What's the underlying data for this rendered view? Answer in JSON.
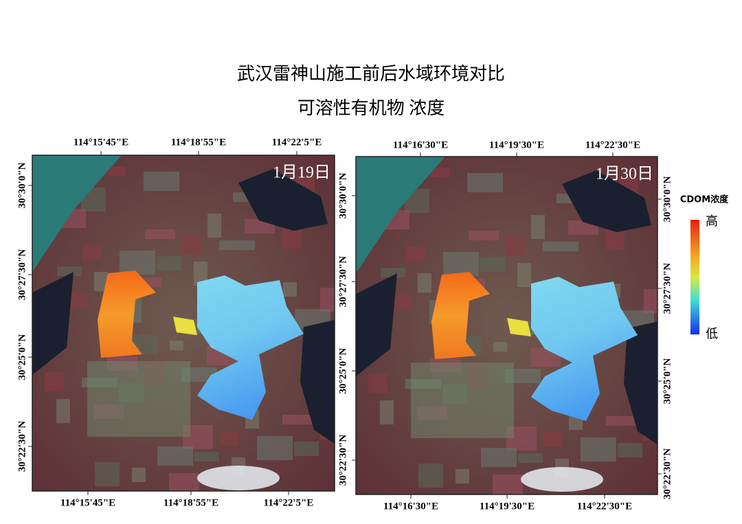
{
  "title": "武汉雷神山施工前后水域环境对比",
  "subtitle": "可溶性有机物 浓度",
  "maps": [
    {
      "date": "1月19日",
      "top_ticks": [
        "114°15'45\"E",
        "114°18'55\"E",
        "114°22'5\"E"
      ],
      "bottom_ticks": [
        "114°15'45\"E",
        "114°18'55\"E",
        "114°22'5\"E"
      ],
      "left_ticks": [
        "30°30'0\"N",
        "30°27'30\"N",
        "30°25'0\"N",
        "30°22'30\"N"
      ]
    },
    {
      "date": "1月30日",
      "top_ticks": [
        "114°16'30\"E",
        "114°19'30\"E",
        "114°22'30\"E"
      ],
      "bottom_ticks": [
        "114°16'30\"E",
        "114°19'30\"E",
        "114°22'30\"E"
      ],
      "left_ticks": [
        "30°30'0\"N",
        "30°27'30\"N",
        "30°25'0\"N",
        "30°22'30\"N"
      ],
      "right_ticks": [
        "30°30'0\"N",
        "30°27'30\"N",
        "30°25'0\"N",
        "30°22'30\"N"
      ]
    }
  ],
  "legend": {
    "title": "CDOM浓度",
    "high": "高",
    "low": "低"
  }
}
